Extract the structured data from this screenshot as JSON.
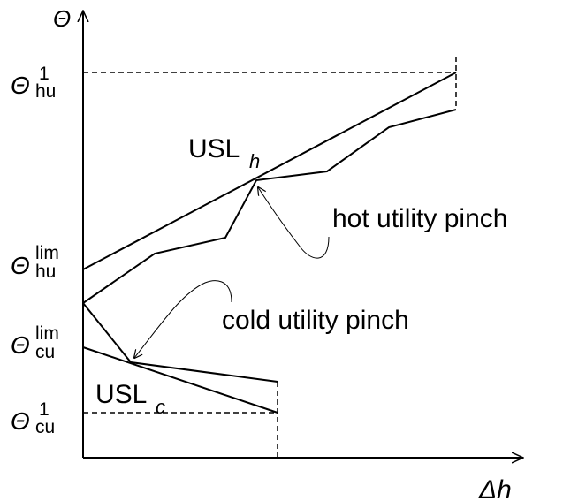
{
  "axes": {
    "y_symbol": "Θ",
    "x_symbol": "Δh"
  },
  "y_labels": [
    {
      "id": "theta-hu-1",
      "base": "Θ",
      "sup": "1",
      "sub": "hu"
    },
    {
      "id": "theta-hu-lim",
      "base": "Θ",
      "sup": "lim",
      "sub": "hu"
    },
    {
      "id": "theta-cu-lim",
      "base": "Θ",
      "sup": "lim",
      "sub": "cu"
    },
    {
      "id": "theta-cu-1",
      "base": "Θ",
      "sup": "1",
      "sub": "cu"
    }
  ],
  "curve_labels": {
    "usl_h": {
      "main": "USL",
      "sub": "h"
    },
    "usl_c": {
      "main": "USL",
      "sub": "c"
    }
  },
  "annotations": {
    "hot_pinch": "hot utility pinch",
    "cold_pinch": "cold utility pinch"
  },
  "colors": {
    "line": "#000000",
    "background": "#ffffff"
  }
}
